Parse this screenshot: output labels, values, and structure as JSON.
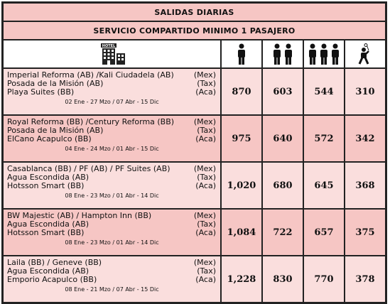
{
  "title": "SALIDAS DIARIAS",
  "subtitle": "SERVICIO COMPARTIDO MINIMO 1 PASAJERO",
  "icons": {
    "hotel": "hotel-icon",
    "hotel_sign": "HOTEL",
    "single": "one-person-icon",
    "double": "two-persons-icon",
    "triple": "three-persons-icon",
    "child": "child-icon"
  },
  "rows": [
    {
      "hotels": [
        {
          "name": "Imperial Reforma (AB) /Kali Ciudadela (AB)",
          "city": "(Mex)"
        },
        {
          "name": "Posada de la Misión (AB)",
          "city": "(Tax)"
        },
        {
          "name": "Playa Suites (BB)",
          "city": "(Aca)"
        }
      ],
      "dates": "02 Ene - 27 Mzo / 07 Abr - 15 Dic",
      "prices": [
        "870",
        "603",
        "544",
        "310"
      ]
    },
    {
      "hotels": [
        {
          "name": "Royal Reforma (BB) /Century Reforma (BB)",
          "city": "(Mex)"
        },
        {
          "name": "Posada de la Misión (AB)",
          "city": "(Tax)"
        },
        {
          "name": "ElCano Acapulco (BB)",
          "city": "(Aca)"
        }
      ],
      "dates": "04 Ene - 24 Mzo / 01 Abr - 15 Dic",
      "prices": [
        "975",
        "640",
        "572",
        "342"
      ]
    },
    {
      "hotels": [
        {
          "name": "Casablanca (BB) / PF (AB) / PF Suites (AB)",
          "city": "(Mex)"
        },
        {
          "name": "Agua Escondida (AB)",
          "city": "(Tax)"
        },
        {
          "name": "Hotsson Smart (BB)",
          "city": "(Aca)"
        }
      ],
      "dates": "08 Ene - 23 Mzo / 01 Abr - 14 Dic",
      "prices": [
        "1,020",
        "680",
        "645",
        "368"
      ]
    },
    {
      "hotels": [
        {
          "name": "BW Majestic (AB) / Hampton Inn (BB)",
          "city": "(Mex)"
        },
        {
          "name": "Agua Escondida (AB)",
          "city": "(Tax)"
        },
        {
          "name": "Hotsson Smart (BB)",
          "city": "(Aca)"
        }
      ],
      "dates": "08 Ene - 23 Mzo / 01 Abr - 14 Dic",
      "prices": [
        "1,084",
        "722",
        "657",
        "375"
      ]
    },
    {
      "hotels": [
        {
          "name": "Laila (BB) / Geneve (BB)",
          "city": "(Mex)"
        },
        {
          "name": "Agua Escondida (AB)",
          "city": "(Tax)"
        },
        {
          "name": "Emporio Acapulco (BB)",
          "city": "(Aca)"
        }
      ],
      "dates": "08 Ene - 21 Mzo / 07 Abr - 15 Dic",
      "prices": [
        "1,228",
        "830",
        "770",
        "378"
      ]
    }
  ]
}
